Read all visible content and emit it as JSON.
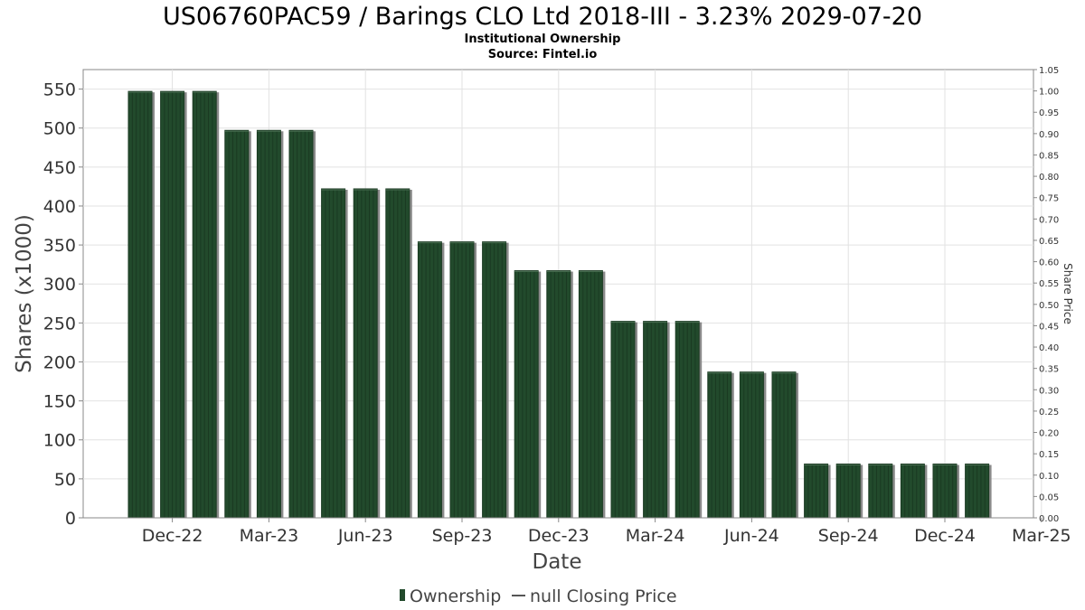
{
  "chart_data": {
    "type": "bar",
    "title": "US06760PAC59 / Barings CLO Ltd 2018-III - 3.23% 2029-07-20",
    "subtitle_lines": [
      "Institutional Ownership",
      "Source: Fintel.io"
    ],
    "xlabel": "Date",
    "ylabel": "Shares (x1000)",
    "y2label": "Share Price",
    "ylim": [
      0,
      575
    ],
    "y2lim": [
      0,
      1.05
    ],
    "yticks": [
      "0",
      "50",
      "100",
      "150",
      "200",
      "250",
      "300",
      "350",
      "400",
      "450",
      "500",
      "550"
    ],
    "y2ticks": [
      "0.00",
      "0.05",
      "0.10",
      "0.15",
      "0.20",
      "0.25",
      "0.30",
      "0.35",
      "0.40",
      "0.45",
      "0.50",
      "0.55",
      "0.60",
      "0.65",
      "0.70",
      "0.75",
      "0.80",
      "0.85",
      "0.90",
      "0.95",
      "1.00",
      "1.05"
    ],
    "xticks": [
      "Dec-22",
      "Mar-23",
      "Jun-23",
      "Sep-23",
      "Dec-23",
      "Mar-24",
      "Jun-24",
      "Sep-24",
      "Dec-24",
      "Mar-25"
    ],
    "grid": true,
    "legend_position": "bottom-center",
    "series": [
      {
        "name": "Ownership",
        "color": "#224a2c",
        "values": [
          547,
          547,
          547,
          497,
          497,
          497,
          422,
          422,
          422,
          354,
          354,
          354,
          317,
          317,
          317,
          252,
          252,
          252,
          187,
          187,
          187,
          69,
          69,
          69,
          69,
          69,
          69
        ]
      },
      {
        "name": "null Closing Price",
        "color": "#555555",
        "values": []
      }
    ]
  }
}
